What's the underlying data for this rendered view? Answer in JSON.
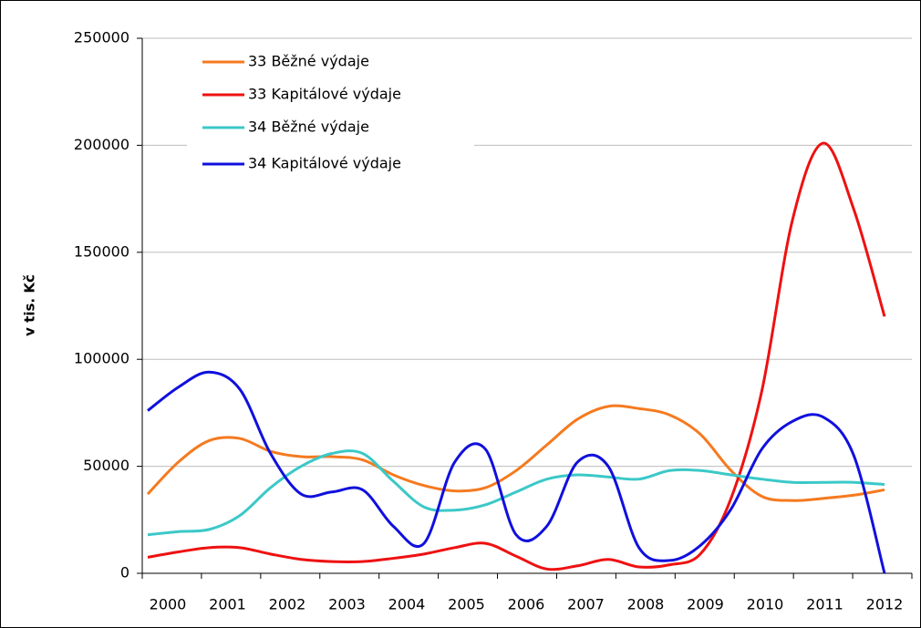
{
  "chart_data": {
    "type": "line",
    "y_label": "v tis. Kč",
    "categories": [
      "2000",
      null,
      "2001",
      null,
      "2002",
      null,
      "2003",
      null,
      "2004",
      null,
      "2005",
      null,
      "2006",
      null,
      "2007",
      null,
      "2008",
      null,
      "2009",
      null,
      "2010",
      null,
      "2011",
      null,
      "2012"
    ],
    "series": [
      {
        "name": "33 Běžné výdaje",
        "color": "#f57a1f",
        "values": [
          37000,
          52000,
          62000,
          63000,
          57000,
          54500,
          54500,
          53000,
          46000,
          41000,
          38500,
          40000,
          48000,
          60000,
          72000,
          78000,
          77000,
          74000,
          65000,
          48000,
          36000,
          34000,
          35000,
          36500,
          39000
        ]
      },
      {
        "name": "33 Kapitálové výdaje",
        "color": "#ee1111",
        "values": [
          7500,
          10000,
          12000,
          12000,
          9000,
          6500,
          5500,
          5500,
          7000,
          9000,
          12000,
          14000,
          8000,
          2000,
          3500,
          6500,
          3000,
          4000,
          9000,
          35000,
          85000,
          165000,
          201000,
          170000,
          120000
        ]
      },
      {
        "name": "34 Běžné výdaje",
        "color": "#3cc8c8",
        "values": [
          18000,
          19500,
          20500,
          27000,
          40000,
          50000,
          56000,
          56000,
          43000,
          31000,
          29500,
          32000,
          38000,
          44000,
          46000,
          45000,
          44000,
          48000,
          48000,
          46000,
          44000,
          42500,
          42500,
          42500,
          41500
        ]
      },
      {
        "name": "34 Kapitálové výdaje",
        "color": "#1010dd",
        "values": [
          76000,
          87000,
          94000,
          86000,
          56000,
          37000,
          38000,
          39000,
          22000,
          14000,
          52000,
          58000,
          18000,
          22000,
          52000,
          50000,
          12000,
          6000,
          13000,
          30000,
          58000,
          71000,
          73000,
          55000,
          0
        ]
      }
    ],
    "ylim": [
      0,
      250000
    ],
    "yticks": [
      0,
      50000,
      100000,
      150000,
      200000,
      250000
    ],
    "grid": true
  }
}
